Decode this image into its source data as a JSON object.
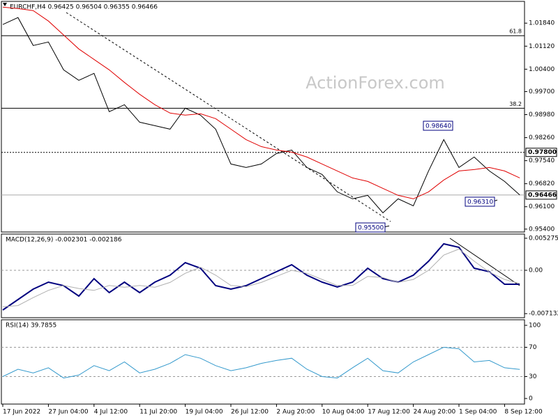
{
  "chart_data": [
    {
      "type": "line",
      "title": "EURCHF,H4  0.96425 0.96504 0.96355 0.96466",
      "watermark": "ActionForex.com",
      "categories": [
        "17 Jun 2022",
        null,
        null,
        "27 Jun 04:00",
        null,
        null,
        "4 Jul 12:00",
        null,
        null,
        "11 Jul 20:00",
        null,
        null,
        "19 Jul 04:00",
        null,
        null,
        "26 Jul 12:00",
        null,
        null,
        "2 Aug 20:00",
        null,
        null,
        "10 Aug 04:00",
        null,
        null,
        "17 Aug 12:00",
        null,
        null,
        "24 Aug 20:00",
        null,
        null,
        "1 Sep 04:00",
        null,
        null,
        "8 Sep 12:00",
        null
      ],
      "series": [
        {
          "color": "#000000",
          "values": [
            1.01796,
            1.02014,
            1.01142,
            1.01251,
            1.00379,
            1.00052,
            1.0027,
            0.99071,
            0.99289,
            0.98744,
            0.98635,
            0.98526,
            0.9918,
            0.98962,
            0.98526,
            0.97436,
            0.97327,
            0.97436,
            0.97763,
            0.97872,
            0.97327,
            0.97109,
            0.96564,
            0.96346,
            0.96455,
            0.9591,
            0.96346,
            0.96128,
            0.97218,
            0.98199,
            0.97327,
            0.97654,
            0.97218,
            0.96891,
            0.96466
          ]
        },
        {
          "color": "#e00000",
          "values": [
            1.02341,
            1.02298,
            1.02232,
            1.01905,
            1.01469,
            1.01033,
            1.00706,
            1.00379,
            0.99987,
            0.99616,
            0.99289,
            0.99028,
            0.98962,
            0.99006,
            0.98853,
            0.98526,
            0.98199,
            0.97981,
            0.97872,
            0.97807,
            0.97654,
            0.97436,
            0.97218,
            0.97,
            0.96891,
            0.96673,
            0.96455,
            0.96346,
            0.96564,
            0.96935,
            0.97218,
            0.97262,
            0.97327,
            0.97218,
            0.97
          ]
        }
      ],
      "ylim": [
        0.9531,
        1.0252
      ],
      "yticks": [
        {
          "value": 1.0184,
          "label": "1.01840"
        },
        {
          "value": 1.0112,
          "label": "1.01120"
        },
        {
          "value": 1.004,
          "label": "1.00400"
        },
        {
          "value": 0.997,
          "label": "0.99700"
        },
        {
          "value": 0.9898,
          "label": "0.98980"
        },
        {
          "value": 0.9826,
          "label": "0.98260"
        },
        {
          "value": 0.9754,
          "label": "0.97540"
        },
        {
          "value": 0.9682,
          "label": "0.96820"
        },
        {
          "value": 0.961,
          "label": "0.96100"
        },
        {
          "value": 0.954,
          "label": "0.95400"
        }
      ],
      "levels": [
        {
          "value": 1.01448,
          "label": "61.8",
          "line_style": "solid",
          "label_position": "inside"
        },
        {
          "value": 0.9918,
          "label": "38.2",
          "line_style": "solid",
          "label_position": "inside"
        },
        {
          "value": 0.978,
          "label": "0.97800",
          "line_style": "dotted",
          "label_position": "axis"
        },
        {
          "value": 0.96466,
          "label": "0.96466",
          "line_style": "current",
          "label_position": "axis"
        }
      ],
      "annotations": [
        {
          "value": 0.9864,
          "label": "0.98640"
        },
        {
          "value": 0.9631,
          "label": "0.96310"
        },
        {
          "value": 0.955,
          "label": "0.95500"
        }
      ]
    },
    {
      "type": "line",
      "title": "MACD(12,26,9) -0.002301 -0.002186",
      "series": [
        {
          "color": "#00007f",
          "values": [
            -0.006538,
            -0.004817,
            -0.003097,
            -0.00195,
            -0.002523,
            -0.004244,
            -0.001376,
            -0.00367,
            -0.00195,
            -0.00367,
            -0.00195,
            -0.000803,
            0.001262,
            0.000344,
            -0.002523,
            -0.003097,
            -0.002523,
            -0.001376,
            -0.000229,
            0.000918,
            -0.000803,
            -0.00195,
            -0.002753,
            -0.00195,
            0.000344,
            -0.001376,
            -0.00195,
            -0.000803,
            0.001491,
            0.004359,
            0.003785,
            0.000344,
            -0.000229,
            -0.002294,
            -0.002301
          ]
        },
        {
          "color": "#b0b0b0",
          "values": [
            -0.006,
            -0.0058,
            -0.0045,
            -0.0033,
            -0.0025,
            -0.003,
            -0.0033,
            -0.0025,
            -0.0028,
            -0.0025,
            -0.0028,
            -0.002,
            -0.0005,
            0.0005,
            -0.0008,
            -0.0025,
            -0.0027,
            -0.002,
            -0.001,
            0,
            -0.0005,
            -0.0015,
            -0.0025,
            -0.0025,
            -0.001,
            -0.0012,
            -0.002,
            -0.0015,
            0,
            0.0025,
            0.0035,
            0.0015,
            -0.0003,
            -0.0015,
            -0.002186
          ]
        }
      ],
      "ylim": [
        -0.0078,
        0.00596
      ],
      "yticks": [
        0.005275,
        {
          "value": 0,
          "label": "0.00"
        },
        -0.007132
      ]
    },
    {
      "type": "line",
      "title": "RSI(14) 39.7855",
      "series": [
        {
          "color": "#3399cc",
          "values": [
            30,
            40,
            35,
            42,
            28,
            32,
            45,
            38,
            50,
            35,
            40,
            48,
            60,
            55,
            45,
            38,
            42,
            48,
            52,
            55,
            40,
            30,
            28,
            42,
            55,
            38,
            35,
            50,
            60,
            70,
            68,
            50,
            52,
            42,
            39.7855
          ]
        }
      ],
      "ylim": [
        -7.6,
        107.6
      ],
      "yticks": [
        100,
        70,
        30,
        0
      ],
      "dashed_ticks": [
        70,
        30
      ]
    }
  ]
}
